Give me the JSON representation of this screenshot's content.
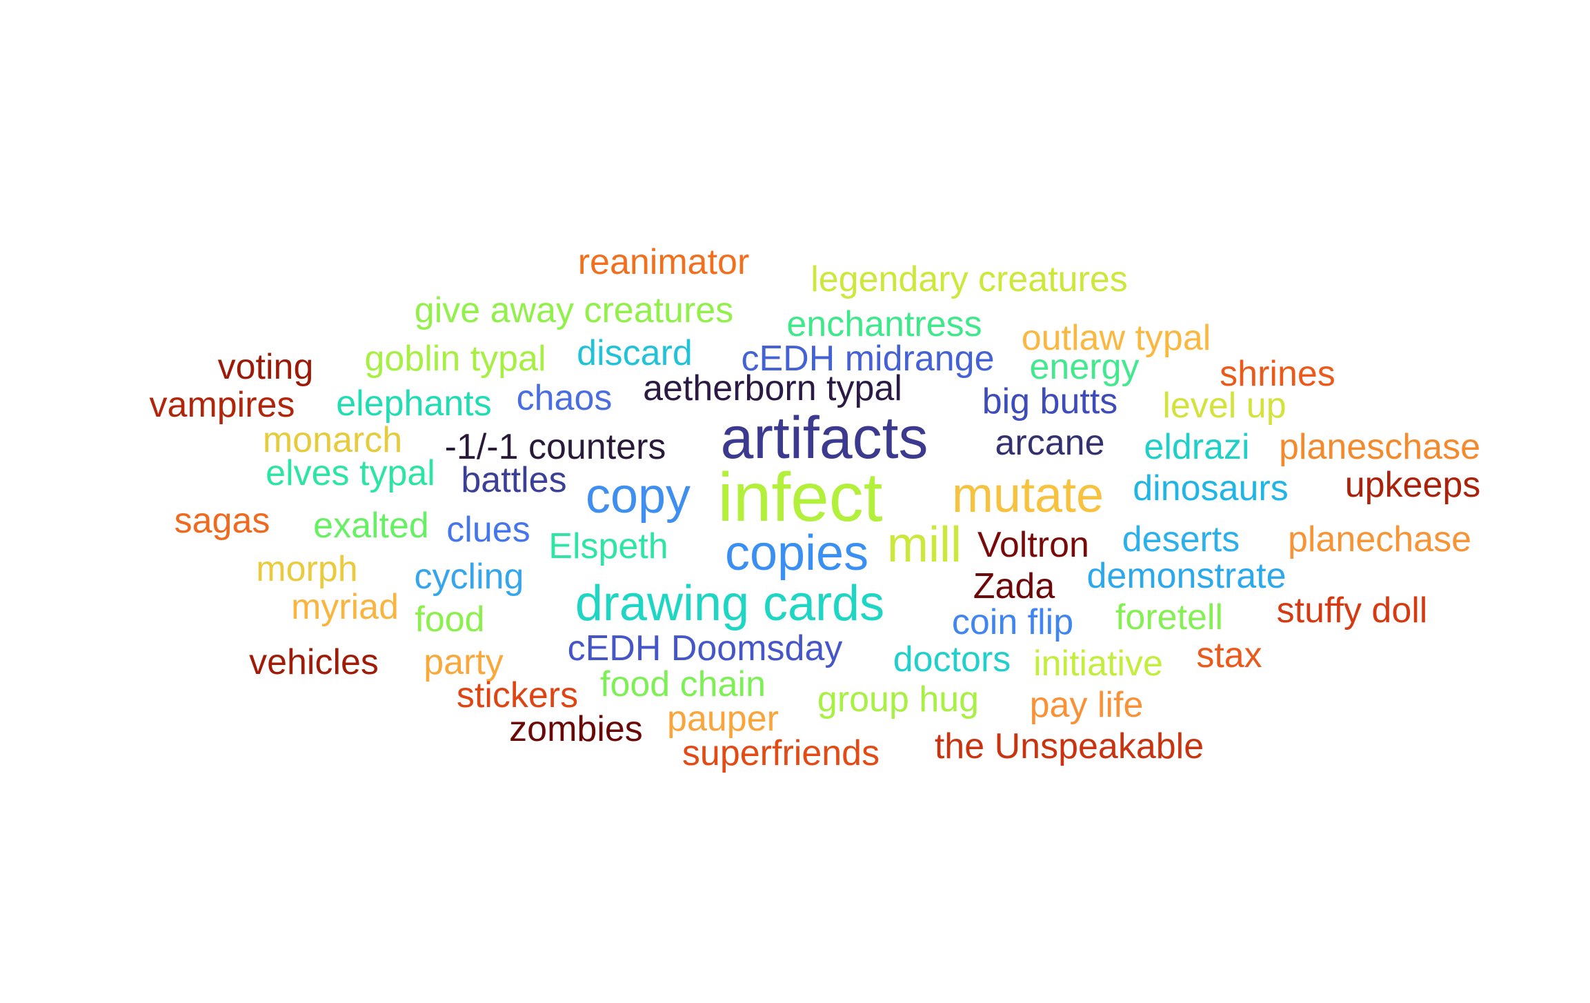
{
  "words": [
    {
      "text": "reanimator",
      "color": "#f26f1e"
    },
    {
      "text": "legendary creatures",
      "color": "#cde83a"
    },
    {
      "text": "give away creatures",
      "color": "#91f04a"
    },
    {
      "text": "enchantress",
      "color": "#3fe88a"
    },
    {
      "text": "outlaw typal",
      "color": "#fbb840"
    },
    {
      "text": "voting",
      "color": "#9b1a08"
    },
    {
      "text": "goblin typal",
      "color": "#a7f043"
    },
    {
      "text": "discard",
      "color": "#22c2d8"
    },
    {
      "text": "cEDH midrange",
      "color": "#4561d6"
    },
    {
      "text": "energy",
      "color": "#43e98f"
    },
    {
      "text": "shrines",
      "color": "#ec5a1b"
    },
    {
      "text": "vampires",
      "color": "#b1260b"
    },
    {
      "text": "elephants",
      "color": "#22dcb3"
    },
    {
      "text": "chaos",
      "color": "#4a6ee0"
    },
    {
      "text": "aetherborn typal",
      "color": "#2b1b44"
    },
    {
      "text": "big butts",
      "color": "#3e4cb9"
    },
    {
      "text": "level up",
      "color": "#d3e33b"
    },
    {
      "text": "artifacts",
      "color": "#3b3a8e"
    },
    {
      "text": "monarch",
      "color": "#e6cb3c"
    },
    {
      "text": "-1/-1 counters",
      "color": "#2a1a3a"
    },
    {
      "text": "arcane",
      "color": "#33316f"
    },
    {
      "text": "eldrazi",
      "color": "#1fcfc8"
    },
    {
      "text": "planeschase",
      "color": "#f58a2d"
    },
    {
      "text": "elves typal",
      "color": "#2ce5a4"
    },
    {
      "text": "battles",
      "color": "#3b3f96"
    },
    {
      "text": "infect",
      "color": "#b2f03c"
    },
    {
      "text": "copy",
      "color": "#3f8ff0"
    },
    {
      "text": "mutate",
      "color": "#f7c240"
    },
    {
      "text": "dinosaurs",
      "color": "#1fb6e6"
    },
    {
      "text": "upkeeps",
      "color": "#aa220a"
    },
    {
      "text": "sagas",
      "color": "#ef6a1e"
    },
    {
      "text": "exalted",
      "color": "#67f064"
    },
    {
      "text": "clues",
      "color": "#4676ec"
    },
    {
      "text": "Elspeth",
      "color": "#2de5a5"
    },
    {
      "text": "copies",
      "color": "#3a90f2"
    },
    {
      "text": "mill",
      "color": "#cce83a"
    },
    {
      "text": "Voltron",
      "color": "#780a0a"
    },
    {
      "text": "deserts",
      "color": "#2bb0ec"
    },
    {
      "text": "planechase",
      "color": "#f79536"
    },
    {
      "text": "morph",
      "color": "#ebcb3d"
    },
    {
      "text": "cycling",
      "color": "#35a6ec"
    },
    {
      "text": "drawing cards",
      "color": "#1ed6c3"
    },
    {
      "text": "Zada",
      "color": "#6e0808"
    },
    {
      "text": "demonstrate",
      "color": "#2ca9ec"
    },
    {
      "text": "myriad",
      "color": "#f9b53f"
    },
    {
      "text": "food",
      "color": "#8bf04c"
    },
    {
      "text": "foretell",
      "color": "#84f054"
    },
    {
      "text": "stuffy doll",
      "color": "#d63a12"
    },
    {
      "text": "coin flip",
      "color": "#4185f0"
    },
    {
      "text": "cEDH Doomsday",
      "color": "#4556c8"
    },
    {
      "text": "vehicles",
      "color": "#a01c08"
    },
    {
      "text": "party",
      "color": "#f9a93c"
    },
    {
      "text": "doctors",
      "color": "#21d0cb"
    },
    {
      "text": "initiative",
      "color": "#c3ee3d"
    },
    {
      "text": "stax",
      "color": "#ec5a1b"
    },
    {
      "text": "stickers",
      "color": "#df4413"
    },
    {
      "text": "food chain",
      "color": "#7cf054"
    },
    {
      "text": "group hug",
      "color": "#a8f043"
    },
    {
      "text": "pay life",
      "color": "#f99236"
    },
    {
      "text": "zombies",
      "color": "#6a0808"
    },
    {
      "text": "pauper",
      "color": "#fba43a"
    },
    {
      "text": "superfriends",
      "color": "#e34a14"
    },
    {
      "text": "the Unspeakable",
      "color": "#c9330f"
    }
  ]
}
